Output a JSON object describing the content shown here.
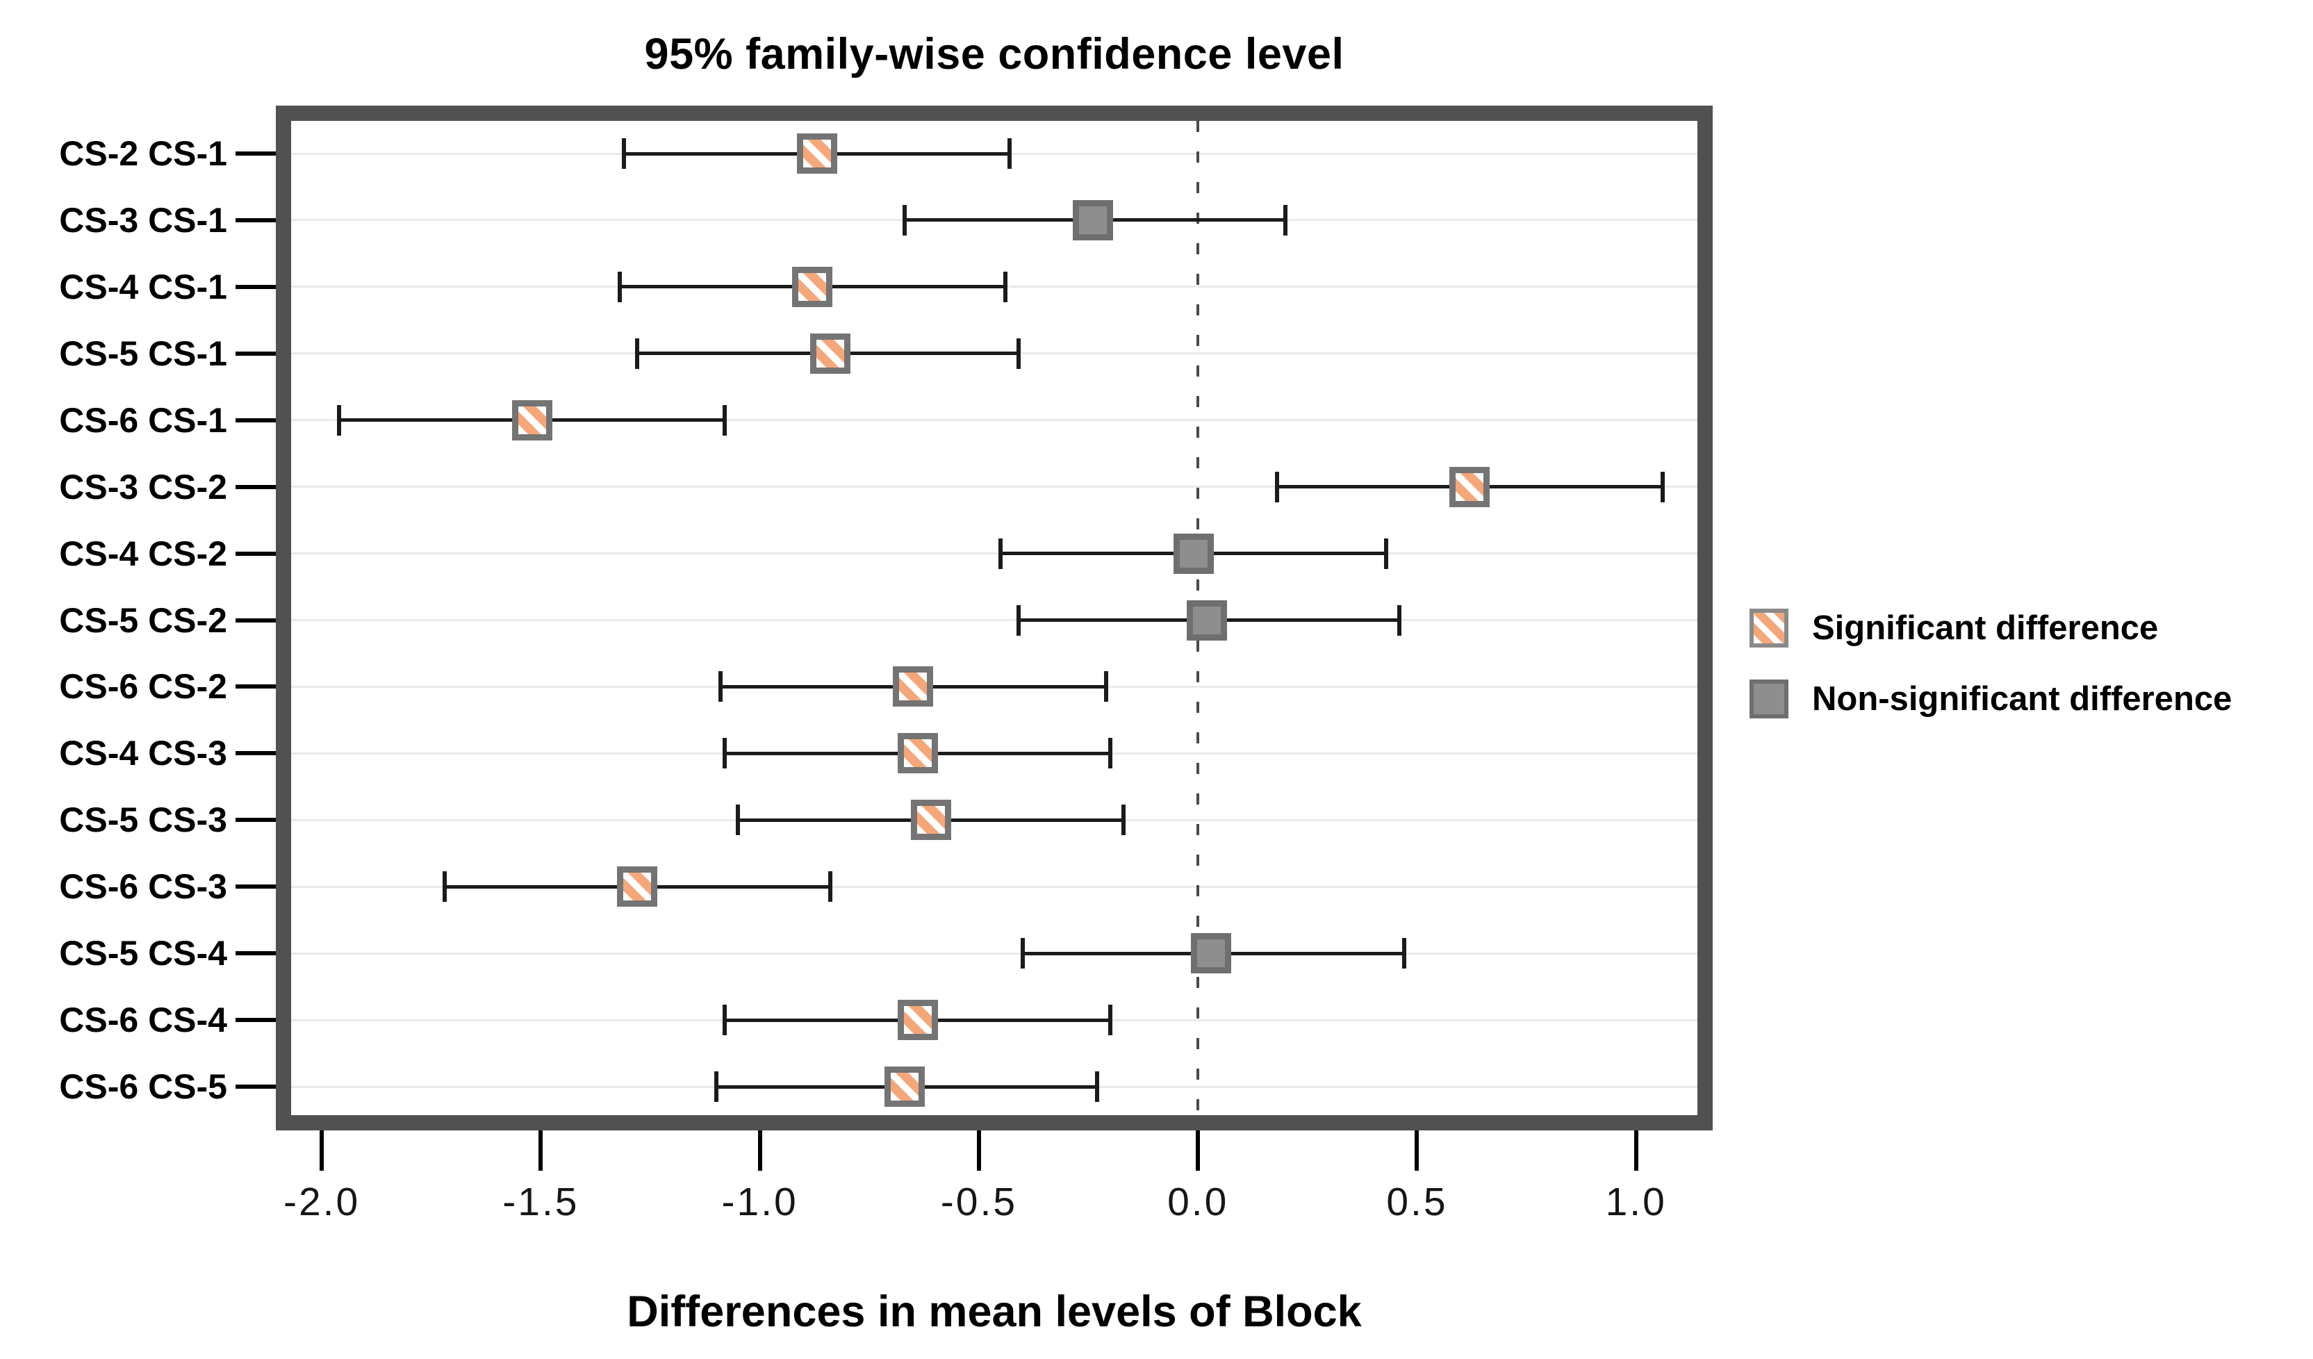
{
  "chart_data": {
    "type": "scatter",
    "subtype": "horizontal-confidence-interval-forest-plot",
    "title": "95% family-wise confidence level",
    "xlabel": "Differences in mean levels of Block",
    "ylabel": "",
    "xlim": [
      -2.07,
      1.14
    ],
    "x_ticks": [
      -2.0,
      -1.5,
      -1.0,
      -0.5,
      0.0,
      0.5,
      1.0
    ],
    "x_tick_labels": [
      "-2.0",
      "-1.5",
      "-1.0",
      "-0.5",
      "0.0",
      "0.5",
      "1.0"
    ],
    "zero_reference_line": 0.0,
    "grid": true,
    "legend_position": "right-center",
    "comparisons": [
      {
        "label": "CS-2 CS-1",
        "lower": -1.31,
        "estimate": -0.87,
        "upper": -0.43,
        "significant": true
      },
      {
        "label": "CS-3 CS-1",
        "lower": -0.67,
        "estimate": -0.24,
        "upper": 0.2,
        "significant": false
      },
      {
        "label": "CS-4 CS-1",
        "lower": -1.32,
        "estimate": -0.88,
        "upper": -0.44,
        "significant": true
      },
      {
        "label": "CS-5 CS-1",
        "lower": -1.28,
        "estimate": -0.84,
        "upper": -0.41,
        "significant": true
      },
      {
        "label": "CS-6 CS-1",
        "lower": -1.96,
        "estimate": -1.52,
        "upper": -1.08,
        "significant": true
      },
      {
        "label": "CS-3 CS-2",
        "lower": 0.18,
        "estimate": 0.62,
        "upper": 1.06,
        "significant": true
      },
      {
        "label": "CS-4 CS-2",
        "lower": -0.45,
        "estimate": -0.01,
        "upper": 0.43,
        "significant": false
      },
      {
        "label": "CS-5 CS-2",
        "lower": -0.41,
        "estimate": 0.02,
        "upper": 0.46,
        "significant": false
      },
      {
        "label": "CS-6 CS-2",
        "lower": -1.09,
        "estimate": -0.65,
        "upper": -0.21,
        "significant": true
      },
      {
        "label": "CS-4 CS-3",
        "lower": -1.08,
        "estimate": -0.64,
        "upper": -0.2,
        "significant": true
      },
      {
        "label": "CS-5 CS-3",
        "lower": -1.05,
        "estimate": -0.61,
        "upper": -0.17,
        "significant": true
      },
      {
        "label": "CS-6 CS-3",
        "lower": -1.72,
        "estimate": -1.28,
        "upper": -0.84,
        "significant": true
      },
      {
        "label": "CS-5 CS-4",
        "lower": -0.4,
        "estimate": 0.03,
        "upper": 0.47,
        "significant": false
      },
      {
        "label": "CS-6 CS-4",
        "lower": -1.08,
        "estimate": -0.64,
        "upper": -0.2,
        "significant": true
      },
      {
        "label": "CS-6 CS-5",
        "lower": -1.1,
        "estimate": -0.67,
        "upper": -0.23,
        "significant": true
      }
    ],
    "legend": [
      {
        "label": "Significant difference",
        "marker": "hatched-orange-square"
      },
      {
        "label": "Non-significant difference",
        "marker": "solid-gray-square"
      }
    ],
    "colors": {
      "frame": "#515151",
      "grid": "#e9e9e9",
      "interval_line": "#1b1b1b",
      "zero_line": "#4a4a4a",
      "marker_border": "#747474",
      "significant_hatch": "#F5A779",
      "significant_fill": "#ffffff",
      "nonsignificant_fill": "#8e8e8e",
      "text": "#000000"
    }
  }
}
